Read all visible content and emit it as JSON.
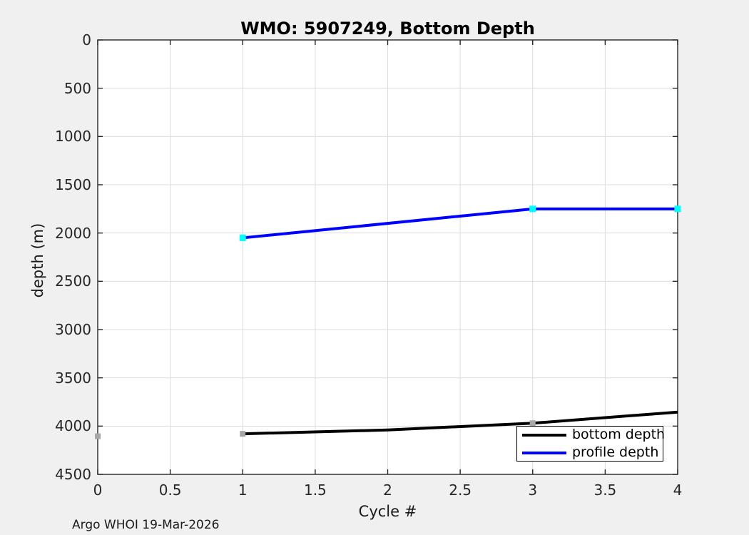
{
  "chart_data": {
    "type": "line",
    "title": "WMO: 5907249, Bottom Depth",
    "xlabel": "Cycle #",
    "ylabel": "depth (m)",
    "xlim": [
      0,
      4
    ],
    "ylim": [
      0,
      4500
    ],
    "y_axis_reversed": true,
    "grid": true,
    "xticks": [
      0,
      0.5,
      1,
      1.5,
      2,
      2.5,
      3,
      3.5,
      4
    ],
    "yticks": [
      0,
      500,
      1000,
      1500,
      2000,
      2500,
      3000,
      3500,
      4000,
      4500
    ],
    "line_width": 4,
    "legend": {
      "position": "southeast",
      "entries": [
        "bottom depth",
        "profile depth"
      ]
    },
    "series": [
      {
        "name": "bottom depth",
        "line_color": "#000000",
        "marker": "square",
        "marker_color": "#a6a6a6",
        "marker_size": 8,
        "line_points": {
          "x": [
            1,
            2,
            3,
            4
          ],
          "y": [
            4080,
            4040,
            3970,
            3855
          ]
        },
        "marker_points": {
          "x": [
            0,
            1,
            3
          ],
          "y": [
            4105,
            4080,
            3970
          ]
        }
      },
      {
        "name": "profile depth",
        "line_color": "#0000ff",
        "marker": "square",
        "marker_color": "#00ffff",
        "marker_size": 9,
        "line_points": {
          "x": [
            1,
            3,
            4
          ],
          "y": [
            2050,
            1750,
            1750
          ]
        },
        "marker_points": {
          "x": [
            1,
            3,
            4
          ],
          "y": [
            2050,
            1750,
            1750
          ]
        }
      }
    ],
    "annotation": "Argo WHOI 19-Mar-2026",
    "colors": {
      "figure_background": "#f0f0f0",
      "plot_background": "#ffffff",
      "axis": "#262626",
      "grid": "#dcdcdc"
    }
  }
}
